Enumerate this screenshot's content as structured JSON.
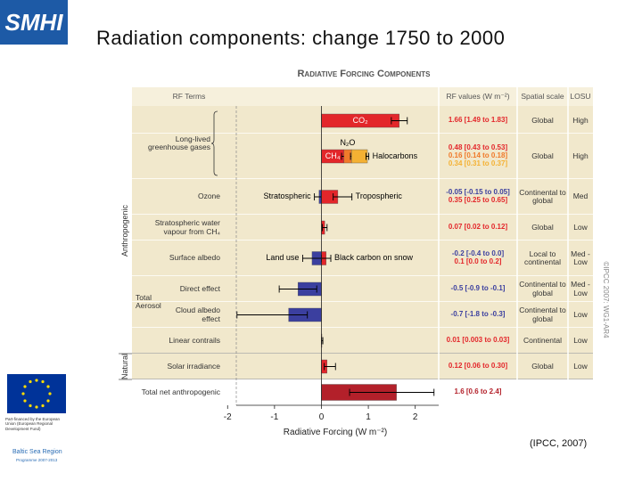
{
  "slide": {
    "logo": "SMHI",
    "title": "Radiation components: change 1750 to 2000",
    "citation": "(IPCC, 2007)",
    "sidebar": {
      "eu_text": "Part-financed by the European Union (European Regional Development Fund)",
      "programme_name": "Baltic Sea Region",
      "programme_years": "Programme 2007-2013"
    }
  },
  "chart_data": {
    "type": "bar",
    "title": "Radiative Forcing Components",
    "columns": [
      "RF Terms",
      "RF values (W m⁻²)",
      "Spatial scale",
      "LOSU"
    ],
    "xlabel": "Radiative Forcing (W m⁻²)",
    "copyright": "©IPCC 2007: WG1-AR4",
    "xlim": [
      -2.1,
      2.5
    ],
    "xticks": [
      -2,
      -1,
      0,
      1,
      2
    ],
    "sections": [
      {
        "label": "Anthropogenic",
        "rows": [
          {
            "term": "Long-lived greenhouse gases",
            "rows": [
              {
                "scale": "Global",
                "losu": "High",
                "components": [
                  {
                    "name": "CO₂",
                    "value": 1.66,
                    "low": 1.49,
                    "high": 1.83,
                    "value_label": "1.66 [1.49 to 1.83]",
                    "color": "#e3262a"
                  }
                ]
              },
              {
                "scale": "Global",
                "losu": "High",
                "stacked": true,
                "components": [
                  {
                    "name": "CH₄",
                    "value": 0.48,
                    "low": 0.43,
                    "high": 0.53,
                    "value_label": "0.48 [0.43 to 0.53]",
                    "color": "#e3262a"
                  },
                  {
                    "name": "N₂O",
                    "value": 0.16,
                    "low": 0.14,
                    "high": 0.18,
                    "value_label": "0.16 [0.14 to 0.18]",
                    "color": "#f07a2a"
                  },
                  {
                    "name": "Halocarbons",
                    "value": 0.34,
                    "low": 0.31,
                    "high": 0.37,
                    "value_label": "0.34 [0.31 to 0.37]",
                    "color": "#f4b133"
                  }
                ]
              }
            ]
          },
          {
            "term": "Ozone",
            "scale": "Continental to global",
            "losu": "Med",
            "components": [
              {
                "name": "Stratospheric",
                "value": -0.05,
                "low": -0.15,
                "high": 0.05,
                "value_label": "-0.05 [-0.15 to 0.05]",
                "color": "#3b3f9f"
              },
              {
                "name": "Tropospheric",
                "value": 0.35,
                "low": 0.25,
                "high": 0.65,
                "value_label": "0.35 [0.25 to 0.65]",
                "color": "#e3262a"
              }
            ]
          },
          {
            "term": "Stratospheric water vapour from CH₄",
            "scale": "Global",
            "losu": "Low",
            "components": [
              {
                "value": 0.07,
                "low": 0.02,
                "high": 0.12,
                "value_label": "0.07 [0.02 to 0.12]",
                "color": "#e3262a"
              }
            ]
          },
          {
            "term": "Surface albedo",
            "scale": "Local to continental",
            "losu": "Med - Low",
            "components": [
              {
                "name": "Land use",
                "value": -0.2,
                "low": -0.4,
                "high": 0.0,
                "value_label": "-0.2 [-0.4 to 0.0]",
                "color": "#3b3f9f"
              },
              {
                "name": "Black carbon on snow",
                "value": 0.1,
                "low": 0.0,
                "high": 0.2,
                "value_label": "0.1 [0.0 to 0.2]",
                "color": "#e3262a"
              }
            ]
          },
          {
            "term": "Total Aerosol",
            "rows": [
              {
                "term": "Direct effect",
                "scale": "Continental to global",
                "losu": "Med - Low",
                "components": [
                  {
                    "value": -0.5,
                    "low": -0.9,
                    "high": -0.1,
                    "value_label": "-0.5 [-0.9 to -0.1]",
                    "color": "#3b3f9f"
                  }
                ]
              },
              {
                "term": "Cloud albedo effect",
                "scale": "Continental to global",
                "losu": "Low",
                "components": [
                  {
                    "value": -0.7,
                    "low": -1.8,
                    "high": -0.3,
                    "value_label": "-0.7 [-1.8 to -0.3]",
                    "color": "#3b3f9f"
                  }
                ]
              }
            ]
          },
          {
            "term": "Linear contrails",
            "scale": "Continental",
            "losu": "Low",
            "components": [
              {
                "value": 0.01,
                "low": 0.003,
                "high": 0.03,
                "value_label": "0.01 [0.003 to 0.03]",
                "color": "#e3262a"
              }
            ]
          }
        ]
      },
      {
        "label": "Natural",
        "rows": [
          {
            "term": "Solar irradiance",
            "scale": "Global",
            "losu": "Low",
            "components": [
              {
                "value": 0.12,
                "low": 0.06,
                "high": 0.3,
                "value_label": "0.12 [0.06 to 0.30]",
                "color": "#e3262a"
              }
            ]
          }
        ]
      },
      {
        "rows": [
          {
            "term": "Total net anthropogenic",
            "components": [
              {
                "value": 1.6,
                "low": 0.6,
                "high": 2.4,
                "value_label": "1.6 [0.6 to 2.4]",
                "color": "#b3202a"
              }
            ]
          }
        ]
      }
    ]
  }
}
